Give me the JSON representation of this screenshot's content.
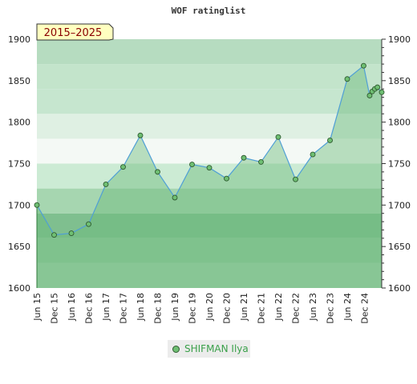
{
  "chart_data": {
    "type": "line",
    "title": "WOF ratinglist",
    "badge": "2015–2025",
    "ylim": [
      1600,
      1900
    ],
    "y_ticks": [
      1600,
      1650,
      1700,
      1750,
      1800,
      1850,
      1900
    ],
    "x_tick_labels": [
      "Jun 15",
      "Dec 15",
      "Jun 16",
      "Dec 16",
      "Jun 17",
      "Dec 17",
      "Jun 18",
      "Dec 18",
      "Jun 19",
      "Dec 19",
      "Jun 20",
      "Dec 20",
      "Jun 21",
      "Dec 21",
      "Jun 22",
      "Dec 22",
      "Jun 23",
      "Dec 23",
      "Jun 24",
      "Dec 24"
    ],
    "grid": true,
    "legend_position": "bottom-center",
    "colors": {
      "fill": "#6dbb7c",
      "line": "#4f9fd6",
      "marker": "#6fbf73",
      "marker_edge": "#2f5a30",
      "legend_text": "#3aa04a"
    },
    "series": [
      {
        "name": "SHIFMAN Ilya",
        "x": [
          0,
          1,
          2,
          3,
          4,
          5,
          6,
          7,
          8,
          9,
          10,
          11,
          12,
          13,
          14,
          15,
          16,
          17,
          18,
          18.95,
          19.3,
          19.45,
          19.6,
          19.75,
          20
        ],
        "values": [
          1700,
          1664,
          1666,
          1677,
          1725,
          1746,
          1784,
          1740,
          1709,
          1749,
          1745,
          1732,
          1757,
          1752,
          1782,
          1731,
          1761,
          1778,
          1852,
          1868,
          1832,
          1837,
          1840,
          1842,
          1836
        ]
      }
    ]
  }
}
